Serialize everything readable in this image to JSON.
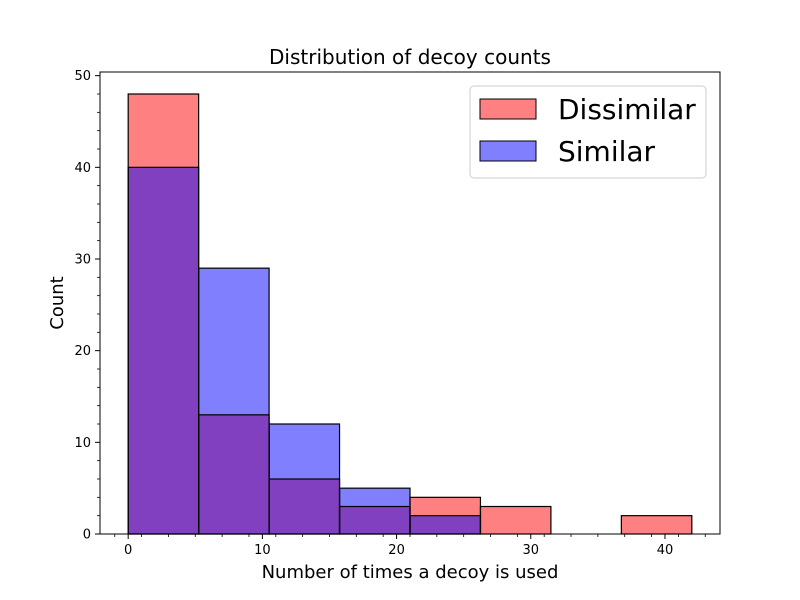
{
  "chart_data": {
    "type": "bar",
    "title": "Distribution of decoy counts",
    "xlabel": "Number of times a decoy is used",
    "ylabel": "Count",
    "xlim": [
      -2.1,
      44.1
    ],
    "ylim": [
      0,
      50.4
    ],
    "xticks": [
      0,
      10,
      20,
      30,
      40
    ],
    "yticks": [
      0,
      10,
      20,
      30,
      40,
      50
    ],
    "bin_edges": [
      0,
      5.25,
      10.5,
      15.75,
      21.0,
      26.25,
      31.5,
      36.75,
      42.0
    ],
    "series": [
      {
        "name": "Dissimilar",
        "color": "#ff8080",
        "values": [
          48,
          13,
          6,
          3,
          4,
          3,
          0,
          2
        ]
      },
      {
        "name": "Similar",
        "color": "#8080ff",
        "values": [
          40,
          29,
          12,
          5,
          2,
          0,
          0,
          0
        ]
      }
    ],
    "overlap_color": "#8040c0",
    "legend_position": "top-right",
    "grid": false
  }
}
